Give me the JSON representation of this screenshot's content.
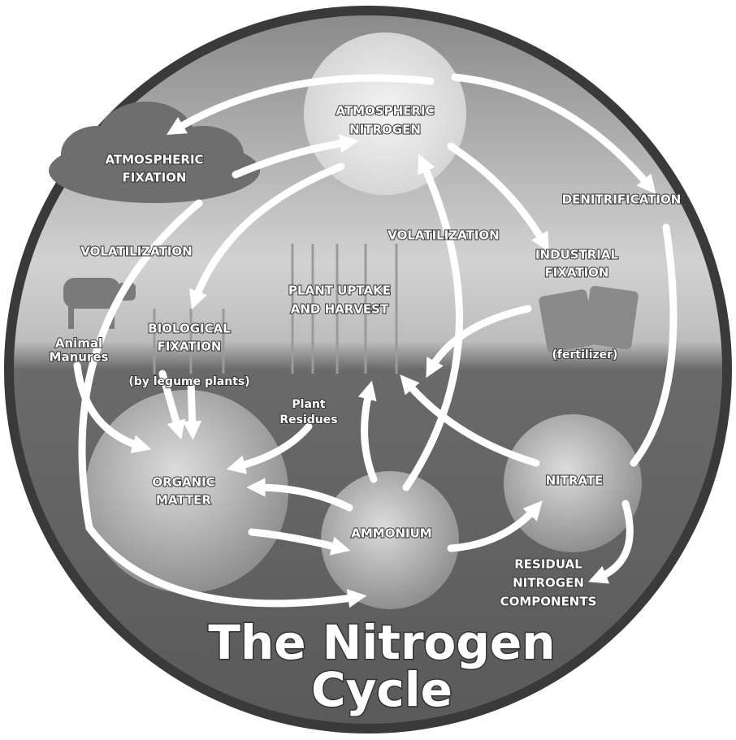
{
  "title": {
    "lines": [
      "The Nitrogen",
      "Cycle"
    ]
  },
  "nodes": [
    {
      "lines": [
        "ATMOSPHERIC",
        "NITROGEN"
      ]
    },
    {
      "lines": [
        "ATMOSPHERIC",
        "FIXATION"
      ]
    },
    {
      "lines": [
        "VOLATILIZATION"
      ]
    },
    {
      "lines": [
        "Animal",
        "Manures"
      ]
    },
    {
      "lines": [
        "BIOLOGICAL",
        "FIXATION"
      ]
    },
    {
      "lines": [
        "(by legume plants)"
      ]
    },
    {
      "lines": [
        "PLANT UPTAKE",
        "AND HARVEST"
      ]
    },
    {
      "lines": [
        "VOLATILIZATION"
      ]
    },
    {
      "lines": [
        "DENITRIFICATION"
      ]
    },
    {
      "lines": [
        "INDUSTRIAL",
        "FIXATION"
      ]
    },
    {
      "lines": [
        "(fertilizer)"
      ]
    },
    {
      "lines": [
        "Plant",
        "Residues"
      ]
    },
    {
      "lines": [
        "ORGANIC",
        "MATTER"
      ]
    },
    {
      "lines": [
        "AMMONIUM"
      ]
    },
    {
      "lines": [
        "NITRATE"
      ]
    },
    {
      "lines": [
        "RESIDUAL",
        "NITROGEN",
        "COMPONENTS"
      ]
    }
  ]
}
